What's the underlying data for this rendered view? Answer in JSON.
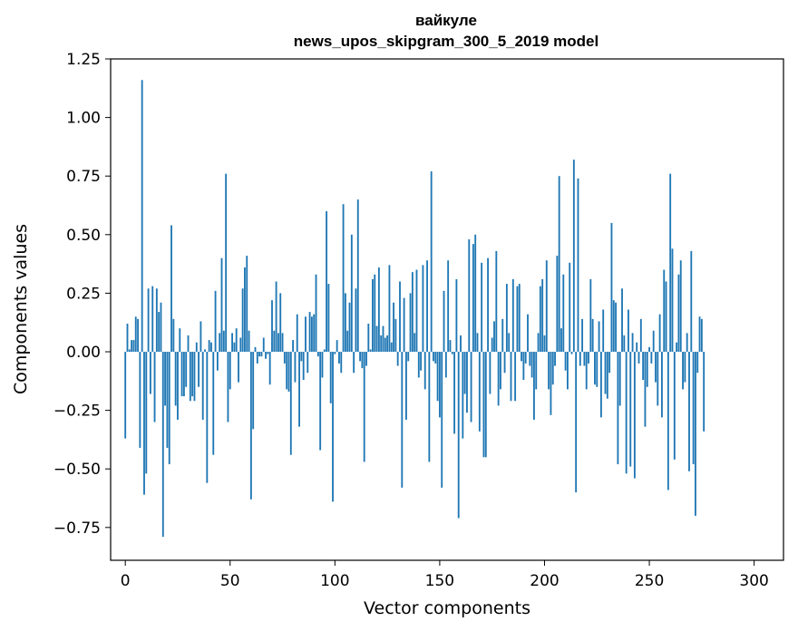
{
  "chart_data": {
    "type": "bar",
    "title": "вайкуле",
    "subtitle": "news_upos_skipgram_300_5_2019 model",
    "xlabel": "Vector components",
    "ylabel": "Components values",
    "xlim": [
      -7,
      314
    ],
    "ylim": [
      -0.89,
      1.25
    ],
    "xticks": [
      0,
      50,
      100,
      150,
      200,
      250,
      300
    ],
    "xtick_labels": [
      "0",
      "50",
      "100",
      "150",
      "200",
      "250",
      "300"
    ],
    "yticks": [
      1.25,
      1.0,
      0.75,
      0.5,
      0.25,
      0.0,
      -0.25,
      -0.5,
      -0.75
    ],
    "ytick_labels": [
      "1.25",
      "1.00",
      "0.75",
      "0.50",
      "0.25",
      "0.00",
      "−0.25",
      "−0.50",
      "−0.75"
    ],
    "grid": false,
    "legend": "none",
    "bar_color": "#1f77b4",
    "values": [
      -0.37,
      0.12,
      0.01,
      0.05,
      0.05,
      0.15,
      0.14,
      -0.41,
      1.16,
      -0.61,
      -0.52,
      0.27,
      -0.18,
      0.28,
      -0.3,
      0.27,
      0.17,
      0.21,
      -0.79,
      -0.23,
      -0.41,
      -0.48,
      0.54,
      0.14,
      -0.23,
      -0.29,
      0.1,
      -0.19,
      -0.19,
      -0.15,
      0.07,
      -0.21,
      -0.19,
      -0.21,
      0.04,
      -0.15,
      0.13,
      -0.29,
      0.01,
      -0.56,
      0.05,
      0.04,
      -0.44,
      0.26,
      -0.08,
      0.08,
      0.4,
      0.09,
      0.76,
      -0.3,
      -0.16,
      0.08,
      0.04,
      0.1,
      -0.13,
      0.06,
      0.27,
      0.36,
      0.41,
      0.09,
      -0.63,
      -0.33,
      0.02,
      -0.05,
      -0.02,
      -0.02,
      0.06,
      -0.03,
      -0.01,
      -0.14,
      0.22,
      0.09,
      0.3,
      0.08,
      0.25,
      0.08,
      -0.05,
      -0.16,
      -0.17,
      -0.44,
      0.05,
      -0.13,
      0.16,
      -0.32,
      -0.04,
      -0.12,
      0.15,
      -0.09,
      0.17,
      0.15,
      0.16,
      0.33,
      -0.02,
      -0.42,
      -0.11,
      0.01,
      0.6,
      0.29,
      -0.22,
      -0.64,
      -0.01,
      0.05,
      -0.05,
      -0.09,
      0.63,
      0.25,
      0.09,
      0.21,
      0.5,
      -0.09,
      0.27,
      0.65,
      -0.04,
      -0.07,
      -0.47,
      -0.06,
      0.12,
      0.01,
      0.31,
      0.33,
      0.11,
      0.36,
      0.07,
      0.11,
      0.06,
      0.07,
      0.37,
      0.04,
      0.21,
      0.14,
      -0.06,
      0.3,
      -0.58,
      0.23,
      -0.29,
      -0.04,
      0.25,
      0.34,
      0.08,
      0.35,
      -0.11,
      -0.08,
      0.37,
      -0.16,
      0.39,
      -0.47,
      0.77,
      -0.04,
      -0.05,
      -0.21,
      -0.28,
      -0.58,
      0.26,
      -0.11,
      0.39,
      0.05,
      -0.01,
      -0.35,
      0.31,
      -0.71,
      0.07,
      -0.37,
      -0.18,
      -0.26,
      0.48,
      -0.3,
      0.46,
      0.5,
      0.08,
      -0.34,
      0.38,
      -0.45,
      -0.45,
      0.4,
      -0.18,
      0.06,
      0.13,
      0.43,
      -0.23,
      -0.16,
      0.14,
      -0.09,
      0.29,
      0.08,
      -0.21,
      0.31,
      -0.21,
      0.28,
      0.29,
      -0.04,
      -0.12,
      -0.05,
      0.16,
      -0.06,
      -0.11,
      -0.29,
      -0.16,
      0.08,
      0.28,
      0.31,
      0.07,
      0.39,
      -0.16,
      -0.27,
      -0.14,
      -0.06,
      0.41,
      0.75,
      0.1,
      0.33,
      -0.08,
      -0.16,
      0.38,
      -0.01,
      0.82,
      -0.6,
      0.74,
      -0.06,
      0.14,
      -0.06,
      -0.16,
      -0.05,
      0.31,
      0.14,
      -0.14,
      -0.15,
      0.13,
      -0.28,
      0.18,
      -0.18,
      -0.2,
      -0.09,
      0.55,
      0.22,
      0.21,
      -0.48,
      -0.23,
      0.27,
      0.07,
      -0.52,
      0.18,
      -0.49,
      0.08,
      -0.54,
      0.04,
      -0.05,
      0.14,
      -0.12,
      -0.32,
      -0.15,
      0.02,
      -0.05,
      0.09,
      -0.13,
      -0.23,
      0.16,
      -0.28,
      0.35,
      0.3,
      -0.59,
      0.76,
      0.44,
      -0.46,
      0.04,
      0.33,
      0.39,
      -0.16,
      -0.13,
      0.08,
      -0.51,
      0.43,
      -0.48,
      -0.7,
      -0.09,
      0.15,
      0.14,
      -0.34
    ]
  }
}
